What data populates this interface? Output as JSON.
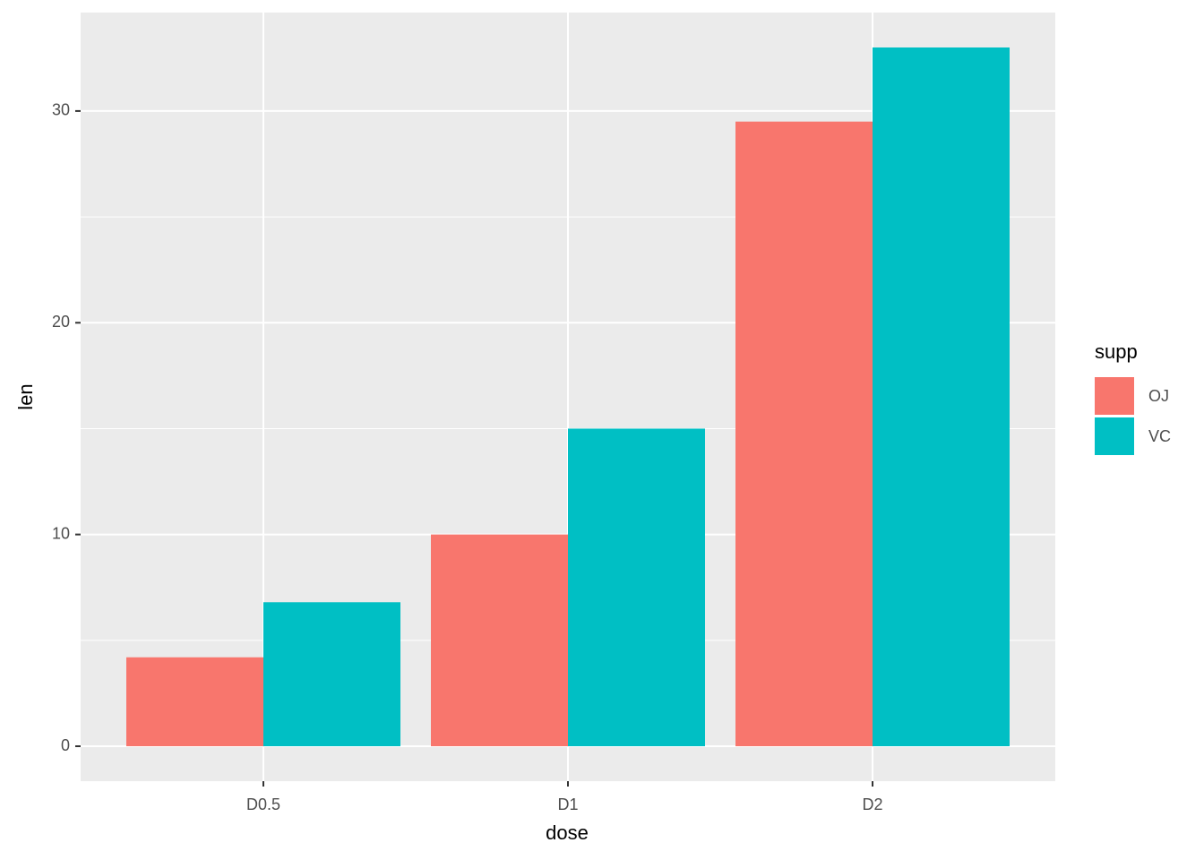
{
  "chart_data": {
    "type": "bar",
    "x_label": "dose",
    "y_label": "len",
    "legend_title": "supp",
    "categories": [
      "D0.5",
      "D1",
      "D2"
    ],
    "series": [
      {
        "name": "OJ",
        "color": "#F8766D",
        "values": [
          4.2,
          10,
          29.5
        ]
      },
      {
        "name": "VC",
        "color": "#00BFC4",
        "values": [
          6.8,
          15,
          33
        ]
      }
    ],
    "ylim": [
      -1.65,
      34.65
    ],
    "yticks": [
      0,
      10,
      20,
      30
    ],
    "minor_yticks": [
      5,
      15,
      25
    ],
    "grid": true,
    "legend": "right"
  }
}
